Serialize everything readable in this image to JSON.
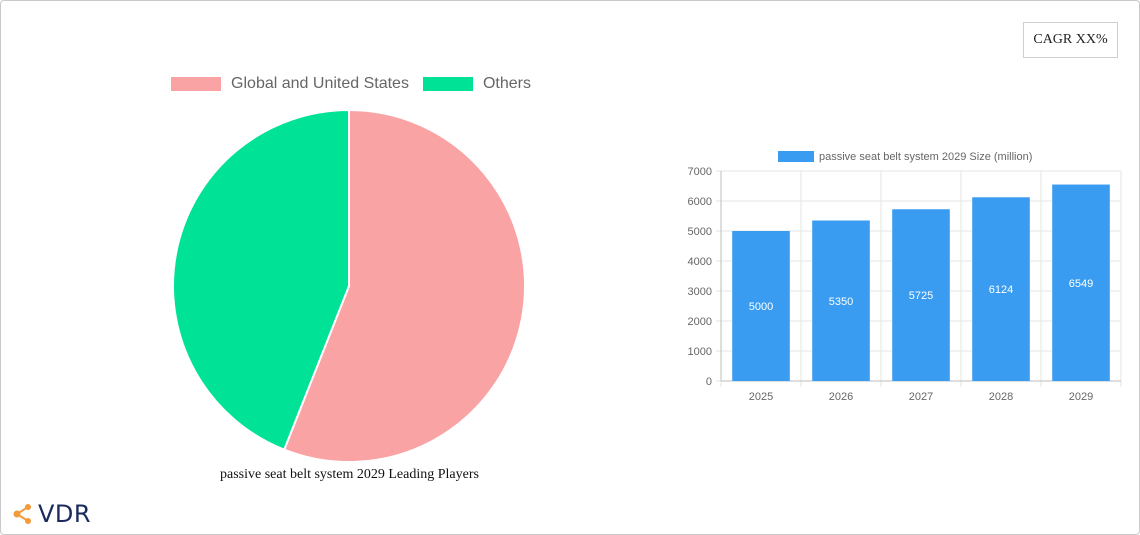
{
  "cagr_label": "CAGR XX%",
  "brand": {
    "logo_text": "VDR",
    "accent_color": "#f39a3b",
    "text_color": "#1a2a5c"
  },
  "chart_data": [
    {
      "type": "pie",
      "title": "passive seat belt system 2029 Leading Players",
      "legend_position": "top",
      "slices": [
        {
          "label": "Global and United States",
          "value": 56,
          "color": "#f9a3a4"
        },
        {
          "label": "Others",
          "value": 44,
          "color": "#00e396"
        }
      ]
    },
    {
      "type": "bar",
      "legend_position": "top",
      "categories": [
        "2025",
        "2026",
        "2027",
        "2028",
        "2029"
      ],
      "series": [
        {
          "name": "passive seat belt system 2029 Size (million)",
          "values": [
            5000,
            5350,
            5725,
            6124,
            6549
          ],
          "color": "#3a9cf0"
        }
      ],
      "ylim": [
        0,
        7000
      ],
      "yticks": [
        0,
        1000,
        2000,
        3000,
        4000,
        5000,
        6000,
        7000
      ],
      "grid": true,
      "data_labels": true
    }
  ]
}
